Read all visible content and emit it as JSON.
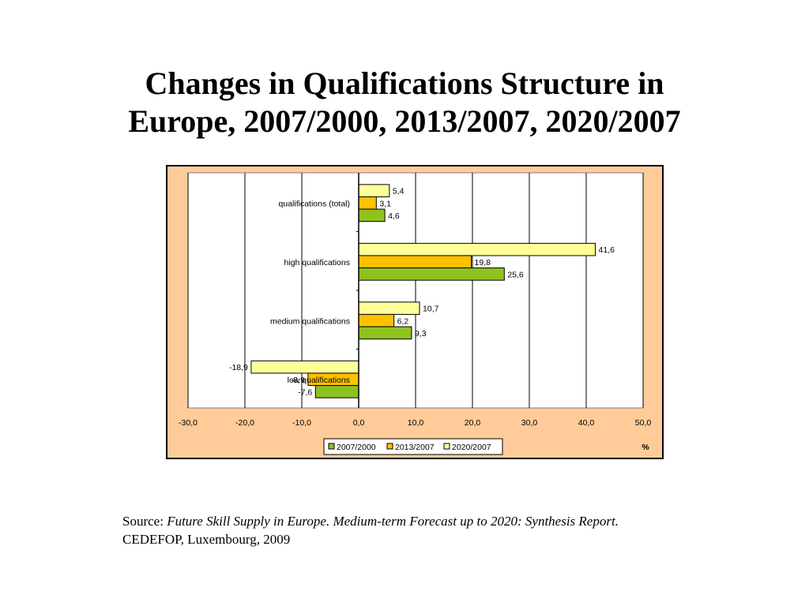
{
  "slide": {
    "title_line1": "Changes in Qualifications Structure in",
    "title_line2": "Europe, 2007/2000, 2013/2007, 2020/2007"
  },
  "source": {
    "prefix": "Source: ",
    "title": "Future Skill Supply in Europe. Medium-term Forecast up to 2020: Synthesis Report.",
    "publisher": "CEDEFOP, Luxembourg, 2009"
  },
  "chart_data": {
    "type": "bar",
    "orientation": "horizontal",
    "categories": [
      "qualifications (total)",
      "high qualifications",
      "medium qualifications",
      "low  qualifications"
    ],
    "series": [
      {
        "name": "2007/2000",
        "values": [
          4.6,
          25.6,
          9.3,
          -7.6
        ],
        "labels": [
          "4,6",
          "25,6",
          "9,3",
          "-7,6"
        ],
        "color": "#8DC21F"
      },
      {
        "name": "2013/2007",
        "values": [
          3.1,
          19.8,
          6.2,
          -8.9
        ],
        "labels": [
          "3,1",
          "19,8",
          "6,2",
          "-8,9"
        ],
        "color": "#FFC000"
      },
      {
        "name": "2020/2007",
        "values": [
          5.4,
          41.6,
          10.7,
          -18.9
        ],
        "labels": [
          "5,4",
          "41,6",
          "10,7",
          "-18,9"
        ],
        "color": "#FFFF99"
      }
    ],
    "xlim": [
      -30,
      50
    ],
    "xticks": [
      -30,
      -20,
      -10,
      0,
      10,
      20,
      30,
      40,
      50
    ],
    "xtick_labels": [
      "-30,0",
      "-20,0",
      "-10,0",
      "0,0",
      "10,0",
      "20,0",
      "30,0",
      "40,0",
      "50,0"
    ],
    "xlabel": "%",
    "grid": true,
    "legend_position": "bottom",
    "background_color": "#FFCC99",
    "plot_background": "#FFFFFF"
  }
}
